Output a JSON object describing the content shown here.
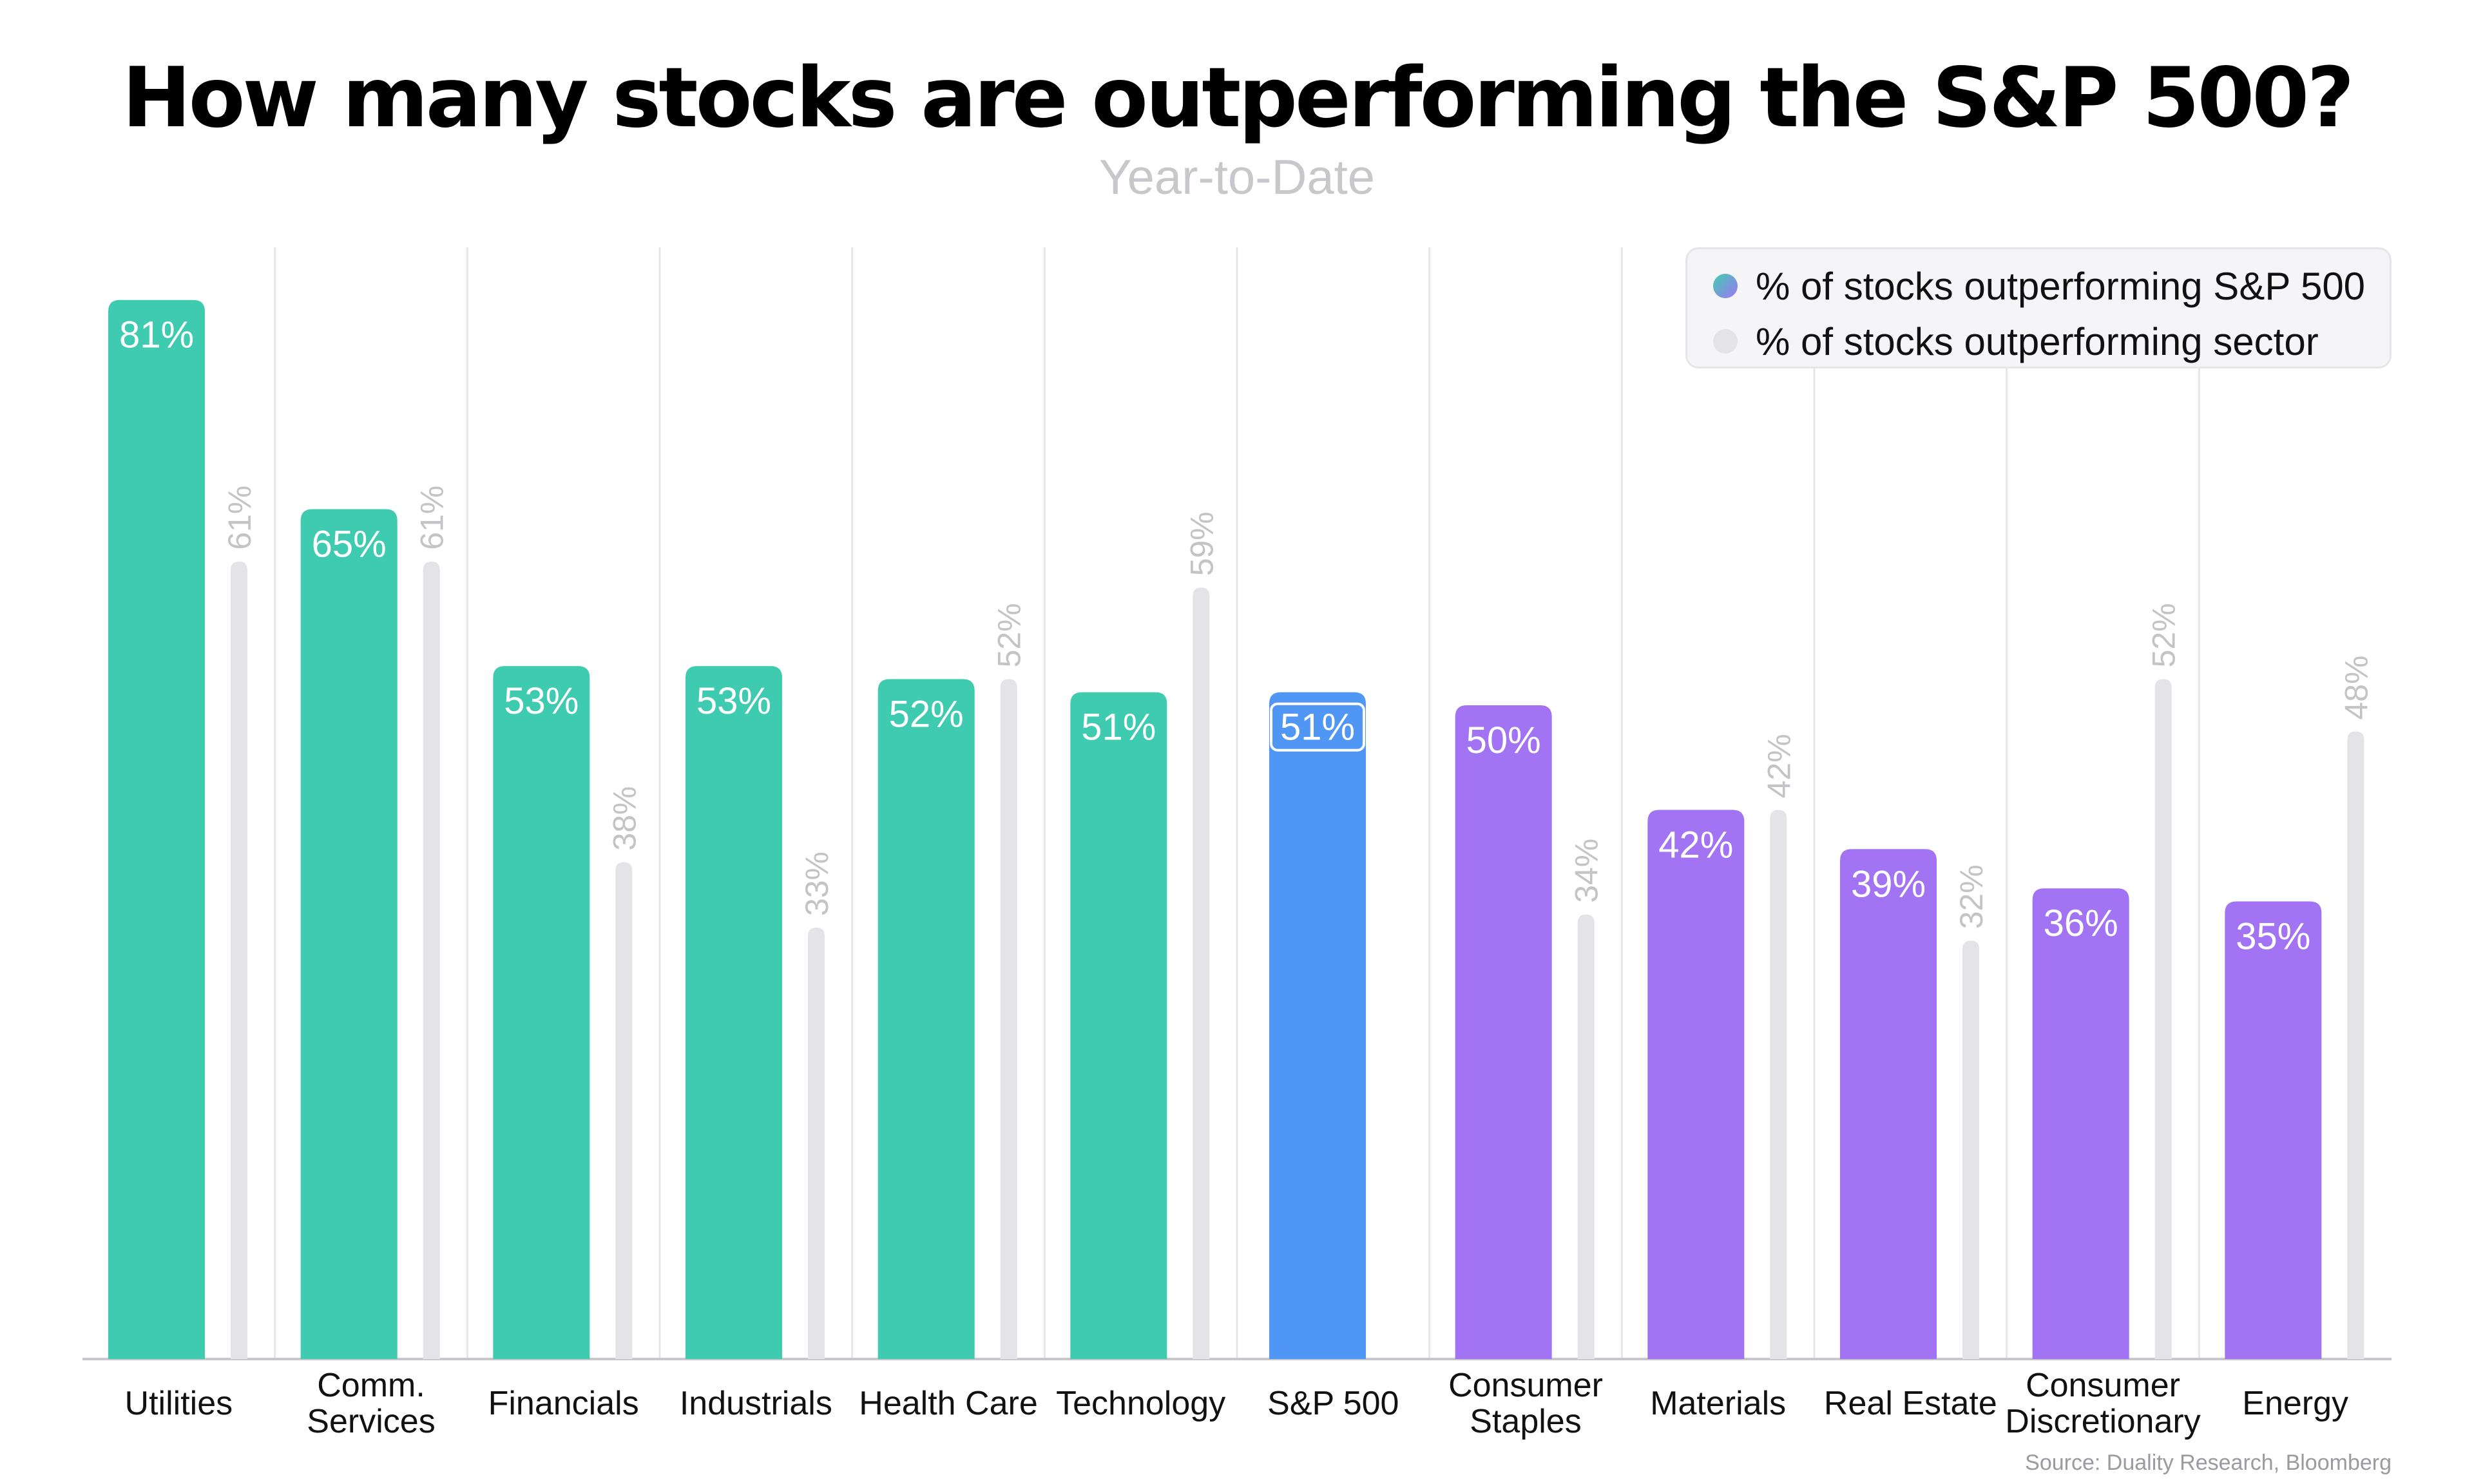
{
  "title": "How many stocks are outperforming the S&P 500?",
  "subtitle": "Year-to-Date",
  "source": "Source: Duality Research, Bloomberg",
  "legend": [
    {
      "label": "% of stocks outperforming S&P 500",
      "color_start": "#3fcdb1",
      "color_end": "#a076f3"
    },
    {
      "label": "% of stocks outperforming sector",
      "color": "#e4e4e8"
    }
  ],
  "colors": {
    "outperforming_teal": "#3ecbb0",
    "benchmark_blue": "#4f96f5",
    "underperforming_purple": "#a274f4",
    "sector_gray": "#e4e4e8"
  },
  "chart_data": {
    "type": "bar",
    "categories": [
      [
        "Utilities"
      ],
      [
        "Comm.",
        "Services"
      ],
      [
        "Financials"
      ],
      [
        "Industrials"
      ],
      [
        "Health Care"
      ],
      [
        "Technology"
      ],
      [
        "S&P 500"
      ],
      [
        "Consumer",
        "Staples"
      ],
      [
        "Materials"
      ],
      [
        "Real Estate"
      ],
      [
        "Consumer",
        "Discretionary"
      ],
      [
        "Energy"
      ]
    ],
    "series": [
      {
        "name": "% of stocks outperforming S&P 500",
        "values": [
          81,
          65,
          53,
          53,
          52,
          51,
          51,
          50,
          42,
          39,
          36,
          35
        ],
        "labels": [
          "81%",
          "65%",
          "53%",
          "53%",
          "52%",
          "51%",
          "51%",
          "50%",
          "42%",
          "39%",
          "36%",
          "35%"
        ],
        "colors": [
          "#3ecbb0",
          "#3ecbb0",
          "#3ecbb0",
          "#3ecbb0",
          "#3ecbb0",
          "#3ecbb0",
          "#4f96f5",
          "#a274f4",
          "#a274f4",
          "#a274f4",
          "#a274f4",
          "#a274f4"
        ]
      },
      {
        "name": "% of stocks outperforming sector",
        "values": [
          61,
          61,
          38,
          33,
          52,
          59,
          null,
          34,
          42,
          32,
          52,
          48
        ],
        "labels": [
          "61%",
          "61%",
          "38%",
          "33%",
          "52%",
          "59%",
          null,
          "34%",
          "42%",
          "32%",
          "52%",
          "48%"
        ],
        "color": "#e4e4e8"
      }
    ],
    "ylim": [
      0,
      100
    ],
    "grid": "vertical separators",
    "legend_position": "top-right",
    "highlight_category": "S&P 500"
  }
}
